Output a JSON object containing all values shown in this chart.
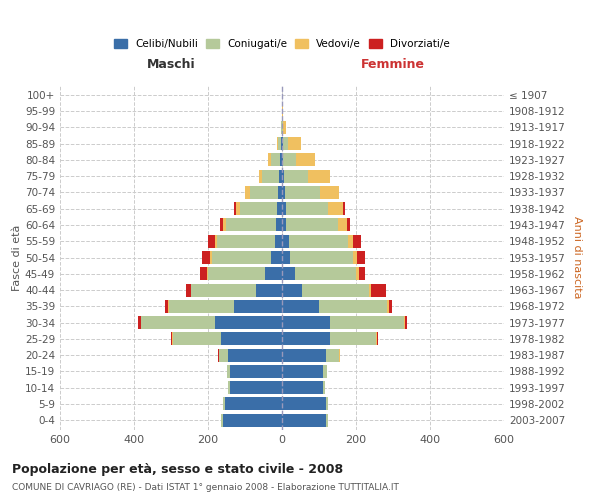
{
  "age_groups": [
    "0-4",
    "5-9",
    "10-14",
    "15-19",
    "20-24",
    "25-29",
    "30-34",
    "35-39",
    "40-44",
    "45-49",
    "50-54",
    "55-59",
    "60-64",
    "65-69",
    "70-74",
    "75-79",
    "80-84",
    "85-89",
    "90-94",
    "95-99",
    "100+"
  ],
  "birth_years": [
    "2003-2007",
    "1998-2002",
    "1993-1997",
    "1988-1992",
    "1983-1987",
    "1978-1982",
    "1973-1977",
    "1968-1972",
    "1963-1967",
    "1958-1962",
    "1953-1957",
    "1948-1952",
    "1943-1947",
    "1938-1942",
    "1933-1937",
    "1928-1932",
    "1923-1927",
    "1918-1922",
    "1913-1917",
    "1908-1912",
    "≤ 1907"
  ],
  "maschi": {
    "celibi": [
      160,
      155,
      140,
      140,
      145,
      165,
      180,
      130,
      70,
      45,
      30,
      20,
      16,
      14,
      12,
      8,
      5,
      2,
      0,
      0,
      0
    ],
    "coniugati": [
      4,
      5,
      5,
      8,
      25,
      130,
      200,
      175,
      175,
      155,
      160,
      155,
      135,
      100,
      75,
      45,
      25,
      8,
      3,
      1,
      0
    ],
    "vedovi": [
      0,
      0,
      0,
      0,
      1,
      2,
      2,
      2,
      2,
      4,
      5,
      6,
      8,
      10,
      12,
      10,
      8,
      3,
      1,
      0,
      0
    ],
    "divorziati": [
      0,
      0,
      0,
      0,
      1,
      2,
      8,
      10,
      12,
      18,
      22,
      20,
      8,
      5,
      2,
      0,
      0,
      0,
      0,
      0,
      0
    ]
  },
  "femmine": {
    "nubili": [
      120,
      120,
      110,
      110,
      120,
      130,
      130,
      100,
      55,
      35,
      22,
      18,
      12,
      10,
      8,
      5,
      4,
      2,
      0,
      0,
      0
    ],
    "coniugate": [
      4,
      5,
      5,
      12,
      35,
      125,
      200,
      185,
      180,
      165,
      170,
      160,
      140,
      115,
      95,
      65,
      35,
      15,
      4,
      1,
      0
    ],
    "vedove": [
      0,
      0,
      0,
      0,
      1,
      2,
      2,
      3,
      5,
      8,
      10,
      15,
      25,
      40,
      50,
      60,
      50,
      35,
      8,
      2,
      1
    ],
    "divorziate": [
      0,
      0,
      0,
      0,
      1,
      2,
      5,
      10,
      40,
      15,
      22,
      20,
      8,
      5,
      2,
      0,
      0,
      0,
      0,
      0,
      0
    ]
  },
  "colors": {
    "celibi_nubili": "#3a6ea8",
    "coniugati": "#b5c99a",
    "vedovi": "#f0c060",
    "divorziati": "#cc2020"
  },
  "xlim": 600,
  "title": "Popolazione per età, sesso e stato civile - 2008",
  "subtitle": "COMUNE DI CAVRIAGO (RE) - Dati ISTAT 1° gennaio 2008 - Elaborazione TUTTITALIA.IT",
  "ylabel_left": "Fasce di età",
  "ylabel_right": "Anni di nascita",
  "xlabel_left": "Maschi",
  "xlabel_right": "Femmine"
}
